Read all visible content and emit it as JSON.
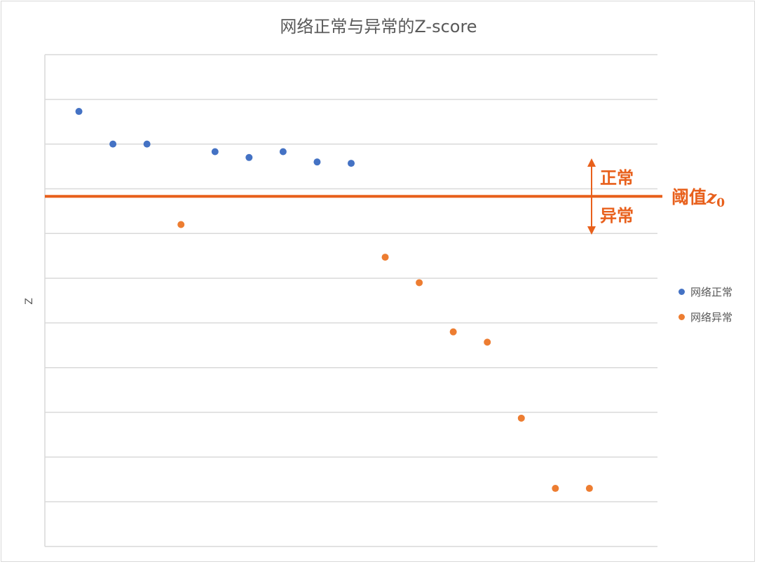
{
  "chart_data": {
    "type": "scatter",
    "title": "网络正常与异常的Z-score",
    "xlabel": "",
    "ylabel": "Z",
    "ylim": [
      -11,
      0
    ],
    "xlim": [
      0,
      18
    ],
    "grid": true,
    "legend_position": "right",
    "series": [
      {
        "name": "网络正常",
        "color": "#4472C4",
        "points": [
          [
            1,
            -1.27
          ],
          [
            2,
            -2.0
          ],
          [
            3,
            -2.0
          ],
          [
            5,
            -2.17
          ],
          [
            6,
            -2.3
          ],
          [
            7,
            -2.17
          ],
          [
            8,
            -2.4
          ],
          [
            9,
            -2.43
          ]
        ]
      },
      {
        "name": "网络异常",
        "color": "#ED7D31",
        "points": [
          [
            4,
            -3.8
          ],
          [
            10,
            -4.53
          ],
          [
            11,
            -5.1
          ],
          [
            12,
            -6.2
          ],
          [
            13,
            -6.43
          ],
          [
            14,
            -8.13
          ],
          [
            15,
            -9.7
          ],
          [
            16,
            -9.7
          ]
        ]
      }
    ],
    "threshold": {
      "y": -3.17,
      "label_main": "阈值",
      "label_var": "z",
      "label_sub": "0",
      "above_label": "正常",
      "below_label": "异常",
      "color": "#E8601C"
    }
  }
}
